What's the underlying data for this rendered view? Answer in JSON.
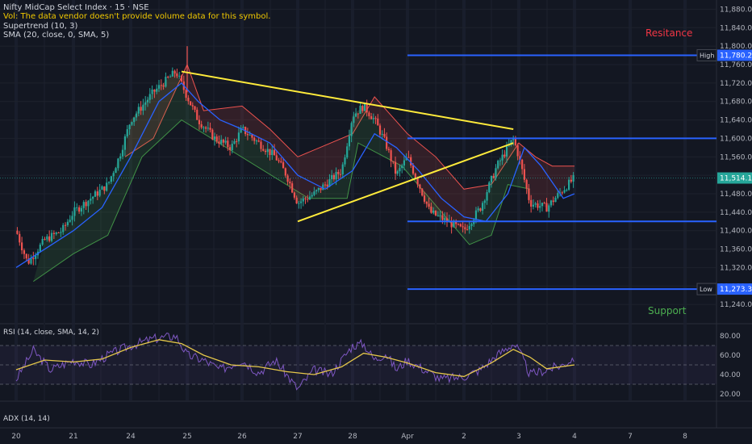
{
  "header": {
    "symbol_line": "Nifty MidCap Select Index · 15 · NSE",
    "volume_note": "Vol: The data vendor doesn't provide volume data for this symbol.",
    "supertrend_label": "Supertrend (10, 3)",
    "sma_label": "SMA (20, close, 0, SMA, 5)"
  },
  "rsi_label": "RSI (14, close, SMA, 14, 2)",
  "adx_label": "ADX (14, 14)",
  "annotations": {
    "resistance": "Resitance",
    "support": "Support"
  },
  "markers": {
    "high": {
      "label": "High",
      "value": "11,780.20"
    },
    "low": {
      "label": "Low",
      "value": "11,273.35"
    },
    "last": {
      "value": "11,514.10"
    }
  },
  "colors": {
    "background": "#131722",
    "bull": "#26a69a",
    "bear": "#ef5350",
    "sma": "#2962ff",
    "trendline": "#ffeb3b",
    "level": "#2962ff",
    "resistance_text": "#f23645",
    "support_text": "#4caf50",
    "rsi": "#7e57c2",
    "rsi_ma": "#e6c84a"
  },
  "chart_data": [
    {
      "type": "candlestick",
      "ylim": [
        11200,
        11900
      ],
      "yticks": [
        "11,240.00",
        "11,280.00",
        "11,320.00",
        "11,360.00",
        "11,400.00",
        "11,440.00",
        "11,480.00",
        "11,520.00",
        "11,560.00",
        "11,600.00",
        "11,640.00",
        "11,680.00",
        "11,720.00",
        "11,760.00",
        "11,800.00",
        "11,840.00",
        "11,880.00"
      ],
      "xticks": [
        "20",
        "21",
        "24",
        "25",
        "26",
        "27",
        "28",
        "Apr",
        "2",
        "3",
        "4",
        "7",
        "8"
      ],
      "x_positions": [
        0,
        1,
        2,
        3,
        4,
        5,
        6,
        7,
        8,
        9,
        10,
        11,
        12
      ],
      "close_path": [
        [
          0,
          11400
        ],
        [
          0.2,
          11330
        ],
        [
          0.5,
          11380
        ],
        [
          0.8,
          11400
        ],
        [
          1.0,
          11440
        ],
        [
          1.3,
          11470
        ],
        [
          1.6,
          11500
        ],
        [
          1.8,
          11560
        ],
        [
          2.0,
          11640
        ],
        [
          2.4,
          11700
        ],
        [
          2.8,
          11745
        ],
        [
          3.0,
          11690
        ],
        [
          3.2,
          11640
        ],
        [
          3.5,
          11600
        ],
        [
          3.8,
          11580
        ],
        [
          4.0,
          11620
        ],
        [
          4.3,
          11590
        ],
        [
          4.6,
          11560
        ],
        [
          4.8,
          11520
        ],
        [
          5.0,
          11460
        ],
        [
          5.3,
          11480
        ],
        [
          5.6,
          11510
        ],
        [
          5.8,
          11530
        ],
        [
          6.0,
          11650
        ],
        [
          6.2,
          11670
        ],
        [
          6.4,
          11640
        ],
        [
          6.6,
          11590
        ],
        [
          6.8,
          11520
        ],
        [
          7.0,
          11560
        ],
        [
          7.2,
          11500
        ],
        [
          7.4,
          11440
        ],
        [
          7.7,
          11420
        ],
        [
          8.0,
          11400
        ],
        [
          8.3,
          11450
        ],
        [
          8.6,
          11540
        ],
        [
          8.9,
          11600
        ],
        [
          9.0,
          11560
        ],
        [
          9.2,
          11460
        ],
        [
          9.5,
          11450
        ],
        [
          9.8,
          11490
        ],
        [
          10.0,
          11514
        ]
      ],
      "supertrend_down": [
        [
          1.9,
          11560
        ],
        [
          2.4,
          11600
        ],
        [
          3.0,
          11760
        ],
        [
          3.3,
          11660
        ],
        [
          4.0,
          11670
        ],
        [
          4.5,
          11620
        ],
        [
          5.0,
          11560
        ],
        [
          6.0,
          11610
        ],
        [
          6.4,
          11690
        ],
        [
          7.0,
          11610
        ],
        [
          7.5,
          11560
        ],
        [
          8.0,
          11490
        ],
        [
          8.5,
          11500
        ],
        [
          9.0,
          11590
        ],
        [
          9.3,
          11560
        ],
        [
          9.6,
          11540
        ],
        [
          10.0,
          11540
        ]
      ],
      "supertrend_up": [
        [
          0.3,
          11290
        ],
        [
          1.0,
          11350
        ],
        [
          1.6,
          11390
        ],
        [
          2.2,
          11560
        ],
        [
          2.9,
          11640
        ],
        [
          5.2,
          11470
        ],
        [
          5.9,
          11470
        ],
        [
          6.1,
          11590
        ],
        [
          6.9,
          11540
        ],
        [
          8.1,
          11370
        ],
        [
          8.5,
          11390
        ],
        [
          8.8,
          11500
        ],
        [
          9.2,
          11490
        ]
      ],
      "sma_path": [
        [
          0,
          11320
        ],
        [
          0.5,
          11360
        ],
        [
          1.0,
          11400
        ],
        [
          1.5,
          11450
        ],
        [
          2.0,
          11560
        ],
        [
          2.5,
          11680
        ],
        [
          2.9,
          11720
        ],
        [
          3.2,
          11680
        ],
        [
          3.6,
          11640
        ],
        [
          4.0,
          11620
        ],
        [
          4.5,
          11590
        ],
        [
          5.0,
          11520
        ],
        [
          5.5,
          11490
        ],
        [
          6.0,
          11530
        ],
        [
          6.4,
          11610
        ],
        [
          6.8,
          11580
        ],
        [
          7.2,
          11530
        ],
        [
          7.6,
          11470
        ],
        [
          8.0,
          11430
        ],
        [
          8.4,
          11420
        ],
        [
          8.8,
          11480
        ],
        [
          9.1,
          11580
        ],
        [
          9.4,
          11540
        ],
        [
          9.8,
          11470
        ],
        [
          10.0,
          11480
        ]
      ],
      "trendlines": [
        [
          [
            2.9,
            11745
          ],
          [
            8.9,
            11620
          ]
        ],
        [
          [
            5.0,
            11420
          ],
          [
            8.9,
            11590
          ]
        ]
      ],
      "levels": [
        11780.2,
        11600,
        11420,
        11273.35
      ]
    },
    {
      "type": "line",
      "name": "RSI",
      "ylim": [
        15,
        90
      ],
      "yticks": [
        "20.00",
        "40.00",
        "60.00",
        "80.00"
      ],
      "bands": [
        30,
        50,
        70
      ],
      "rsi": [
        [
          0,
          35
        ],
        [
          0.3,
          65
        ],
        [
          0.6,
          45
        ],
        [
          1.0,
          55
        ],
        [
          1.3,
          50
        ],
        [
          1.6,
          60
        ],
        [
          2.0,
          70
        ],
        [
          2.4,
          77
        ],
        [
          2.8,
          80
        ],
        [
          3.0,
          60
        ],
        [
          3.3,
          55
        ],
        [
          3.6,
          45
        ],
        [
          4.0,
          55
        ],
        [
          4.3,
          42
        ],
        [
          4.6,
          55
        ],
        [
          5.0,
          25
        ],
        [
          5.3,
          45
        ],
        [
          5.6,
          40
        ],
        [
          6.0,
          70
        ],
        [
          6.2,
          72
        ],
        [
          6.4,
          55
        ],
        [
          6.6,
          62
        ],
        [
          6.8,
          45
        ],
        [
          7.0,
          55
        ],
        [
          7.3,
          45
        ],
        [
          7.6,
          35
        ],
        [
          8.0,
          38
        ],
        [
          8.3,
          45
        ],
        [
          8.6,
          60
        ],
        [
          8.9,
          72
        ],
        [
          9.0,
          65
        ],
        [
          9.2,
          40
        ],
        [
          9.5,
          45
        ],
        [
          9.8,
          50
        ],
        [
          10.0,
          58
        ]
      ],
      "rsi_ma": [
        [
          0,
          45
        ],
        [
          0.5,
          55
        ],
        [
          1.0,
          53
        ],
        [
          1.5,
          56
        ],
        [
          2.0,
          68
        ],
        [
          2.5,
          76
        ],
        [
          2.9,
          72
        ],
        [
          3.3,
          60
        ],
        [
          3.8,
          50
        ],
        [
          4.3,
          48
        ],
        [
          4.8,
          43
        ],
        [
          5.3,
          40
        ],
        [
          5.8,
          48
        ],
        [
          6.2,
          62
        ],
        [
          6.6,
          58
        ],
        [
          7.0,
          52
        ],
        [
          7.5,
          42
        ],
        [
          8.0,
          38
        ],
        [
          8.5,
          52
        ],
        [
          8.9,
          66
        ],
        [
          9.2,
          58
        ],
        [
          9.5,
          46
        ],
        [
          10.0,
          50
        ]
      ]
    }
  ]
}
